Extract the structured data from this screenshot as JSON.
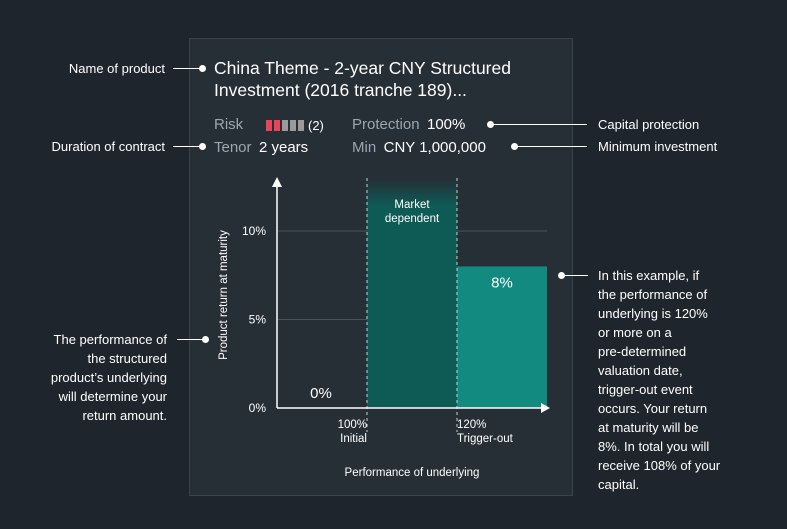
{
  "product": {
    "title_line1": "China Theme - 2-year CNY Structured",
    "title_line2": "Investment (2016 tranche 189)...",
    "risk_label": "Risk",
    "risk_level": 2,
    "risk_max": 5,
    "risk_text": "(2)",
    "protection_label": "Protection",
    "protection_value": "100%",
    "tenor_label": "Tenor",
    "tenor_value": "2 years",
    "min_label": "Min",
    "min_value": "CNY 1,000,000"
  },
  "annotations": {
    "name_of_product": "Name of product",
    "duration_of_contract": "Duration of contract",
    "capital_protection": "Capital protection",
    "minimum_investment": "Minimum investment",
    "left_note": [
      "The performance of",
      "the structured",
      "product’s underlying",
      "will determine your",
      "return amount."
    ],
    "right_note": [
      "In this example, if",
      "the performance of",
      "underlying is 120%",
      "or more on a",
      "pre-determined",
      "valuation date,",
      "trigger-out event",
      "occurs. Your return",
      "at maturity will be",
      "8%. In total you will",
      "receive 108% of your",
      "capital."
    ]
  },
  "colors": {
    "risk_active": "#e5465a",
    "risk_inactive": "#9a9a9a",
    "market_dependent": "#0e5a55",
    "trigger_out": "#128a80",
    "gridline": "#4a535c"
  },
  "chart_data": {
    "type": "bar",
    "xlabel": "Performance of underlying",
    "ylabel": "Product return at maturity",
    "ylim": [
      0,
      13
    ],
    "yticks": [
      {
        "value": 0,
        "label": "0%"
      },
      {
        "value": 5,
        "label": "5%"
      },
      {
        "value": 10,
        "label": "10%"
      }
    ],
    "xticks": [
      {
        "value": 100,
        "label_top": "100%",
        "label_bottom": "Initial"
      },
      {
        "value": 120,
        "label_top": "120%",
        "label_bottom": "Trigger-out"
      }
    ],
    "segments": [
      {
        "name": "below-initial",
        "x_from": 80,
        "x_to": 100,
        "value": 0,
        "label": "0%"
      },
      {
        "name": "market-dependent",
        "x_from": 100,
        "x_to": 120,
        "value": 13,
        "label": "Market dependent",
        "label_lines": [
          "Market",
          "dependent"
        ]
      },
      {
        "name": "trigger-out",
        "x_from": 120,
        "x_to": 140,
        "value": 8,
        "label": "8%"
      }
    ],
    "grid": true
  }
}
